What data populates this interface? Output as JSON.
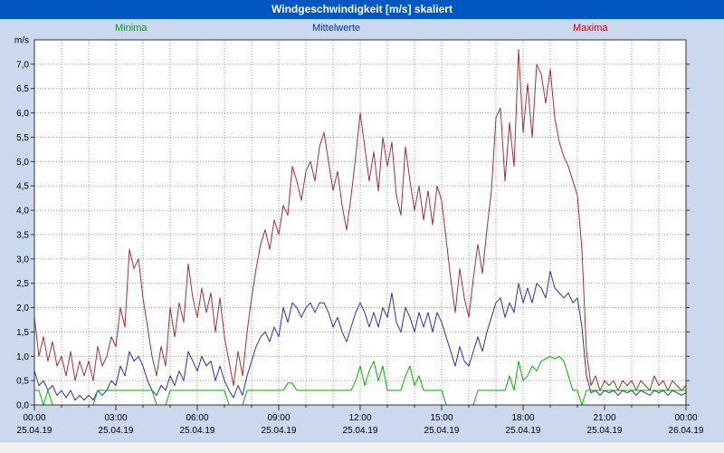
{
  "header": {
    "title": "Windgeschwindigkeit [m/s] skaliert"
  },
  "colors": {
    "background": "#ccd8ee",
    "titlebar_bg": "#0057c2",
    "titlebar_text": "#ffffff",
    "plot_bg": "#ffffff",
    "grid": "#9a9a9a",
    "axis": "#333333",
    "minima": "#00b400",
    "mittelwerte": "#2e2eb8",
    "maxima": "#a03232"
  },
  "chart_data": {
    "type": "line",
    "title": "Windgeschwindigkeit [m/s] skaliert",
    "xlabel": "",
    "ylabel": "m/s",
    "ylim": [
      0,
      7.5
    ],
    "y_tick_step": 0.5,
    "y_ticks": [
      "0,0",
      "0,5",
      "1,0",
      "1,5",
      "2,0",
      "2,5",
      "3,0",
      "3,5",
      "4,0",
      "4,5",
      "5,0",
      "5,5",
      "6,0",
      "6,5",
      "7,0"
    ],
    "x_start": "25.04.19 00:00",
    "x_end": "26.04.19 00:00",
    "interval_minutes": 10,
    "grid": true,
    "legend_position": "top",
    "x_ticks": [
      {
        "time": "00:00",
        "date": "25.04.19"
      },
      {
        "time": "03:00",
        "date": "25.04.19"
      },
      {
        "time": "06:00",
        "date": "25.04.19"
      },
      {
        "time": "09:00",
        "date": "25.04.19"
      },
      {
        "time": "12:00",
        "date": "25.04.19"
      },
      {
        "time": "15:00",
        "date": "25.04.19"
      },
      {
        "time": "18:00",
        "date": "25.04.19"
      },
      {
        "time": "21:00",
        "date": "25.04.19"
      },
      {
        "time": "00:00",
        "date": "26.04.19"
      }
    ],
    "series": [
      {
        "name": "Minima",
        "color": "#00b400",
        "label_color": "#00a020",
        "values": [
          0.3,
          0.3,
          0.0,
          0.3,
          0.0,
          0.0,
          0.0,
          0.0,
          0.0,
          0.0,
          0.0,
          0.0,
          0.0,
          0.0,
          0.3,
          0.3,
          0.3,
          0.3,
          0.3,
          0.3,
          0.3,
          0.3,
          0.3,
          0.3,
          0.3,
          0.3,
          0.3,
          0.0,
          0.0,
          0.0,
          0.3,
          0.3,
          0.3,
          0.3,
          0.3,
          0.3,
          0.3,
          0.3,
          0.3,
          0.3,
          0.3,
          0.3,
          0.3,
          0.0,
          0.0,
          0.0,
          0.0,
          0.3,
          0.3,
          0.3,
          0.3,
          0.3,
          0.3,
          0.3,
          0.3,
          0.3,
          0.45,
          0.45,
          0.3,
          0.3,
          0.3,
          0.3,
          0.3,
          0.3,
          0.3,
          0.3,
          0.3,
          0.3,
          0.3,
          0.3,
          0.3,
          0.5,
          0.8,
          0.4,
          0.7,
          0.9,
          0.5,
          0.8,
          0.3,
          0.3,
          0.3,
          0.3,
          0.6,
          0.8,
          0.4,
          0.6,
          0.3,
          0.3,
          0.3,
          0.3,
          0.3,
          0.0,
          0.0,
          0.0,
          0.0,
          0.0,
          0.0,
          0.0,
          0.3,
          0.3,
          0.3,
          0.3,
          0.3,
          0.3,
          0.3,
          0.6,
          0.3,
          0.9,
          0.5,
          0.6,
          0.8,
          0.7,
          0.9,
          0.95,
          1.0,
          0.95,
          1.0,
          0.9,
          0.6,
          0.3,
          0.3,
          0.0,
          0.3,
          0.3,
          0.3,
          0.3,
          0.3,
          0.3,
          0.3,
          0.3,
          0.3,
          0.3,
          0.3,
          0.3,
          0.3,
          0.3,
          0.3,
          0.3,
          0.3,
          0.3,
          0.3,
          0.3,
          0.3,
          0.3,
          0.3
        ]
      },
      {
        "name": "Mittelwerte",
        "color": "#2e2eb8",
        "label_color": "#003399",
        "values": [
          0.7,
          0.4,
          0.5,
          0.3,
          0.4,
          0.2,
          0.3,
          0.15,
          0.3,
          0.1,
          0.2,
          0.1,
          0.2,
          0.1,
          0.3,
          0.2,
          0.3,
          0.5,
          0.4,
          0.8,
          0.6,
          1.1,
          0.9,
          1.0,
          0.8,
          0.5,
          0.3,
          0.2,
          0.4,
          0.3,
          0.6,
          0.4,
          0.7,
          0.5,
          1.1,
          0.9,
          0.7,
          1.0,
          0.8,
          0.9,
          0.5,
          0.8,
          0.5,
          0.3,
          0.15,
          0.4,
          0.2,
          0.6,
          0.9,
          1.2,
          1.4,
          1.5,
          1.3,
          1.6,
          1.4,
          2.0,
          1.7,
          2.1,
          2.0,
          1.8,
          2.0,
          2.1,
          1.9,
          2.1,
          2.1,
          1.9,
          1.6,
          1.8,
          1.5,
          1.3,
          1.6,
          1.9,
          2.1,
          1.9,
          1.6,
          1.9,
          1.6,
          2.0,
          1.8,
          2.3,
          1.7,
          1.5,
          2.0,
          1.8,
          1.5,
          1.9,
          1.6,
          1.9,
          1.5,
          1.9,
          1.7,
          1.4,
          1.1,
          0.8,
          1.2,
          0.9,
          0.8,
          1.1,
          1.4,
          1.1,
          1.5,
          1.8,
          2.1,
          2.2,
          1.8,
          2.1,
          1.9,
          2.5,
          2.1,
          2.4,
          2.1,
          2.5,
          2.4,
          2.2,
          2.75,
          2.4,
          2.3,
          2.2,
          2.3,
          2.1,
          2.2,
          1.6,
          0.6,
          0.25,
          0.3,
          0.2,
          0.3,
          0.25,
          0.3,
          0.2,
          0.3,
          0.25,
          0.3,
          0.2,
          0.3,
          0.25,
          0.2,
          0.3,
          0.25,
          0.3,
          0.2,
          0.3,
          0.25,
          0.2,
          0.25
        ]
      },
      {
        "name": "Maxima",
        "color": "#a03232",
        "label_color": "#cc0000",
        "values": [
          1.8,
          1.0,
          1.4,
          0.9,
          1.3,
          0.8,
          1.0,
          0.6,
          1.1,
          0.5,
          0.9,
          0.6,
          0.9,
          0.5,
          1.2,
          0.8,
          1.0,
          1.4,
          1.2,
          2.0,
          1.6,
          3.2,
          2.8,
          3.0,
          2.2,
          1.6,
          1.0,
          0.6,
          1.2,
          0.8,
          2.0,
          1.4,
          2.1,
          1.7,
          2.9,
          2.2,
          1.8,
          2.4,
          1.9,
          2.3,
          1.5,
          2.2,
          1.4,
          0.9,
          0.4,
          1.1,
          0.6,
          1.5,
          2.2,
          2.8,
          3.3,
          3.6,
          3.2,
          3.8,
          3.5,
          4.1,
          3.9,
          4.9,
          4.6,
          4.2,
          4.8,
          5.0,
          4.6,
          5.3,
          5.6,
          5.0,
          4.4,
          4.8,
          4.1,
          3.6,
          4.3,
          5.1,
          6.0,
          5.3,
          4.6,
          5.2,
          4.4,
          5.5,
          4.9,
          5.4,
          4.3,
          3.9,
          5.3,
          4.6,
          4.0,
          4.5,
          3.8,
          4.4,
          3.7,
          4.5,
          4.2,
          3.4,
          2.6,
          1.9,
          2.8,
          2.2,
          1.8,
          2.6,
          3.3,
          2.7,
          3.6,
          4.4,
          5.9,
          6.1,
          4.6,
          5.8,
          4.9,
          7.3,
          5.6,
          6.6,
          5.5,
          7.0,
          6.8,
          6.2,
          6.9,
          5.9,
          5.4,
          5.1,
          4.9,
          4.6,
          4.3,
          3.2,
          1.1,
          0.4,
          0.6,
          0.3,
          0.5,
          0.4,
          0.5,
          0.3,
          0.5,
          0.4,
          0.5,
          0.3,
          0.5,
          0.4,
          0.3,
          0.6,
          0.4,
          0.5,
          0.3,
          0.5,
          0.4,
          0.3,
          0.4
        ]
      }
    ]
  }
}
